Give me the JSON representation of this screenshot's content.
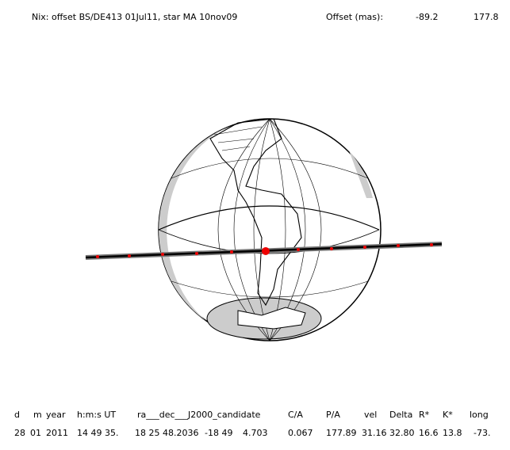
{
  "header": {
    "title": "Nix: offset BS/DE413 01Jul11, star MA 10nov09",
    "offset_label": "Offset (mas):",
    "offset_values": [
      "-89.2",
      "177.8"
    ]
  },
  "table": {
    "headers": [
      "d",
      "m",
      "year",
      "h:m:s UT",
      "ra___dec___J2000_candidate",
      "C/A",
      "P/A",
      "vel",
      "Delta",
      "R*",
      "K*",
      "long"
    ],
    "values": [
      "28",
      "01",
      "2011",
      "14 49 35.",
      "18 25 48.2036",
      "-18 49",
      "4.703",
      "0.067",
      "177.89",
      "31.16",
      "32.80",
      "16.6",
      "13.8",
      "-73."
    ]
  }
}
